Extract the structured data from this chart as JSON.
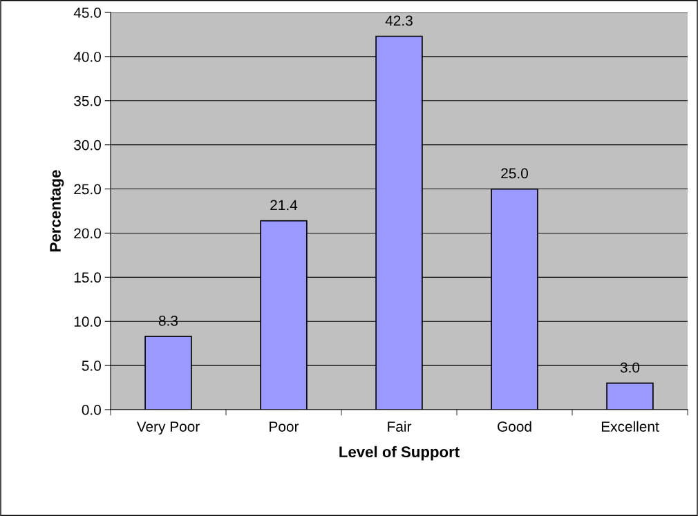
{
  "chart_data": {
    "type": "bar",
    "xlabel": "Level of Support",
    "ylabel": "Percentage",
    "categories": [
      "Very Poor",
      "Poor",
      "Fair",
      "Good",
      "Excellent"
    ],
    "values": [
      8.3,
      21.4,
      42.3,
      25.0,
      3.0
    ],
    "value_labels": [
      "8.3",
      "21.4",
      "42.3",
      "25.0",
      "3.0"
    ],
    "color": "#9999ff",
    "ylim": [
      0,
      45
    ],
    "yticks": [
      {
        "value": 0,
        "label": "0.0"
      },
      {
        "value": 5,
        "label": "5.0"
      },
      {
        "value": 10,
        "label": "10.0"
      },
      {
        "value": 15,
        "label": "15.0"
      },
      {
        "value": 20,
        "label": "20.0"
      },
      {
        "value": 25,
        "label": "25.0"
      },
      {
        "value": 30,
        "label": "30.0"
      },
      {
        "value": 35,
        "label": "35.0"
      },
      {
        "value": 40,
        "label": "40.0"
      },
      {
        "value": 45,
        "label": "45.0"
      }
    ],
    "grid": "y"
  }
}
